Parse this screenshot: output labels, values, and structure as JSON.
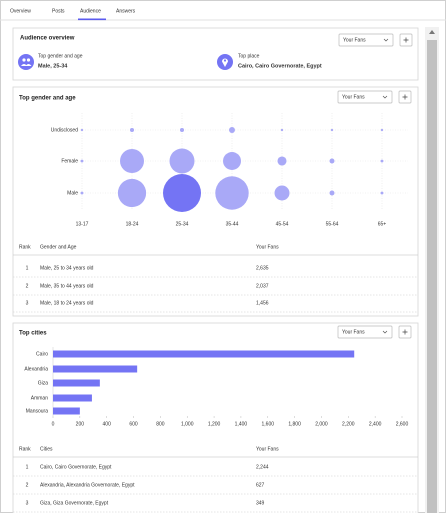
{
  "tabs": [
    "Overview",
    "Posts",
    "Audience",
    "Answers"
  ],
  "overview": {
    "title": "Audience overview",
    "dropdown": "Your Fans",
    "items": [
      {
        "label": "Top gender and age",
        "value": "Male, 25-34"
      },
      {
        "label": "Top place",
        "value": "Cairo, Cairo Governorate, Egypt"
      }
    ]
  },
  "chart_data": [
    {
      "type": "bubble",
      "title": "Top gender and age",
      "dropdown": "Your Fans",
      "categories": [
        "13-17",
        "18-24",
        "25-34",
        "35-44",
        "45-54",
        "55-64",
        "65+"
      ],
      "series": [
        {
          "name": "Undisclosed",
          "values": [
            10,
            30,
            30,
            65,
            10,
            10,
            10
          ]
        },
        {
          "name": "Female",
          "values": [
            15,
            1050,
            1140,
            590,
            150,
            45,
            15
          ]
        },
        {
          "name": "Male",
          "values": [
            15,
            1456,
            2635,
            2037,
            410,
            45,
            15
          ]
        }
      ],
      "color": "#a9a9f7",
      "highlight_color": "#7474f4"
    },
    {
      "type": "bar",
      "title": "Top cities",
      "dropdown": "Your Fans",
      "categories": [
        "Cairo",
        "Alexandria",
        "Giza",
        "Amman",
        "Mansoura"
      ],
      "values": [
        2244,
        627,
        349,
        290,
        200
      ],
      "color": "#7474f4",
      "xlim": [
        0,
        2600
      ],
      "xticks": [
        0,
        200,
        400,
        600,
        800,
        {
          "value": 1000,
          "label": "1,000"
        },
        {
          "value": 1200,
          "label": "1,200"
        },
        {
          "value": 1400,
          "label": "1,400"
        },
        {
          "value": 1600,
          "label": "1,600"
        },
        {
          "value": 1800,
          "label": "1,800"
        },
        {
          "value": 2000,
          "label": "2,000"
        },
        {
          "value": 2200,
          "label": "2,200"
        },
        {
          "value": 2400,
          "label": "2,400"
        },
        {
          "value": 2600,
          "label": "2,600"
        }
      ]
    }
  ],
  "gender_table": {
    "header": [
      "Rank",
      "Gender and Age",
      "Your Fans"
    ],
    "rows": [
      [
        "1",
        "Male, 25 to 34 years old",
        "2,635"
      ],
      [
        "2",
        "Male, 35 to 44 years old",
        "2,037"
      ],
      [
        "3",
        "Male, 18 to 24 years old",
        "1,456"
      ]
    ]
  },
  "cities_table": {
    "header": [
      "Rank",
      "Cities",
      "Your Fans"
    ],
    "rows": [
      [
        "1",
        "Cairo, Cairo Governorate, Egypt",
        "2,244"
      ],
      [
        "2",
        "Alexandria, Alexandria Governorate, Egypt",
        "627"
      ],
      [
        "3",
        "Giza, Giza Governorate, Egypt",
        "349"
      ]
    ]
  }
}
